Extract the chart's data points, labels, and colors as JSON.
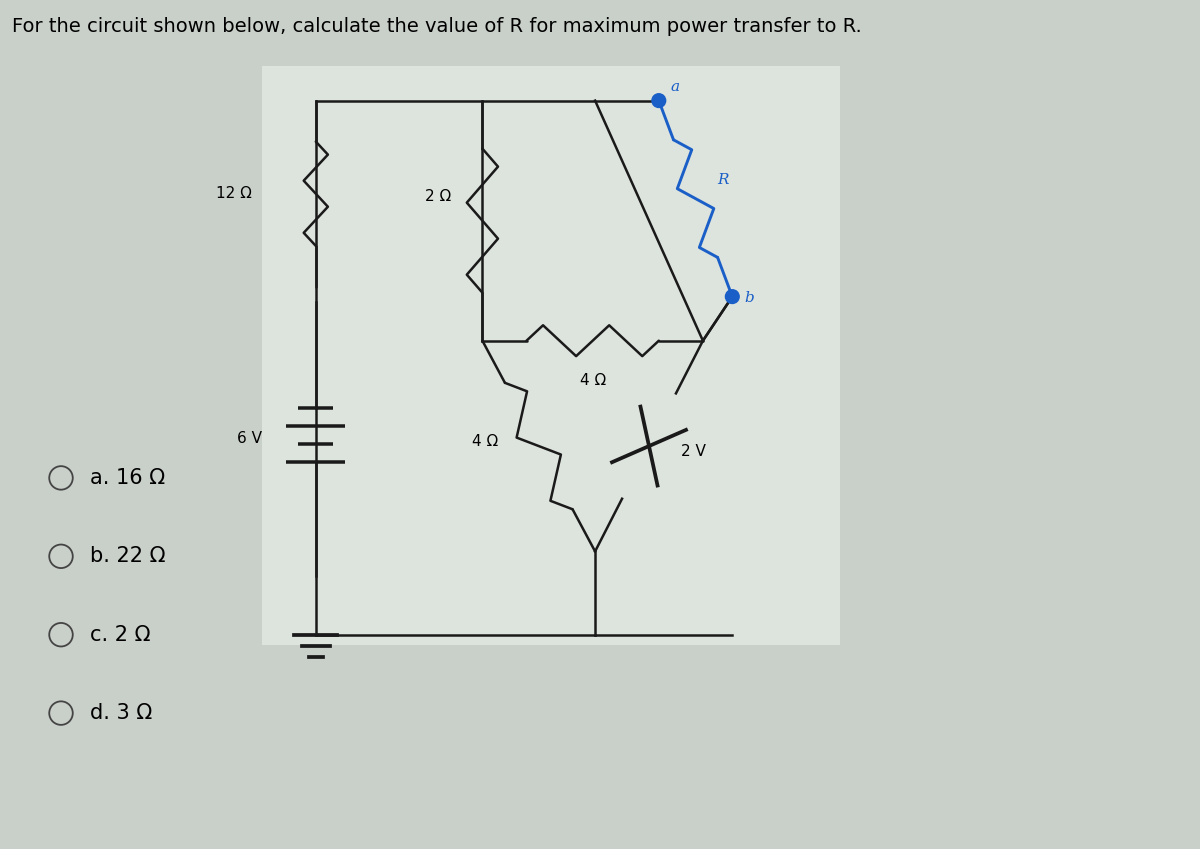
{
  "title": "For the circuit shown below, calculate the value of R for maximum power transfer to R.",
  "title_fontsize": 14,
  "bg_color": "#c9cfc9",
  "circuit_bg": "#dde3dd",
  "options": [
    "a. 16 Ω",
    "b. 22 Ω",
    "c. 2 Ω",
    "d. 3 Ω"
  ],
  "options_fontsize": 15,
  "resistor_color": "#1a1a1a",
  "R_color": "#1a5fc8",
  "wire_color": "#1a1a1a",
  "node_color": "#1a5fc8"
}
